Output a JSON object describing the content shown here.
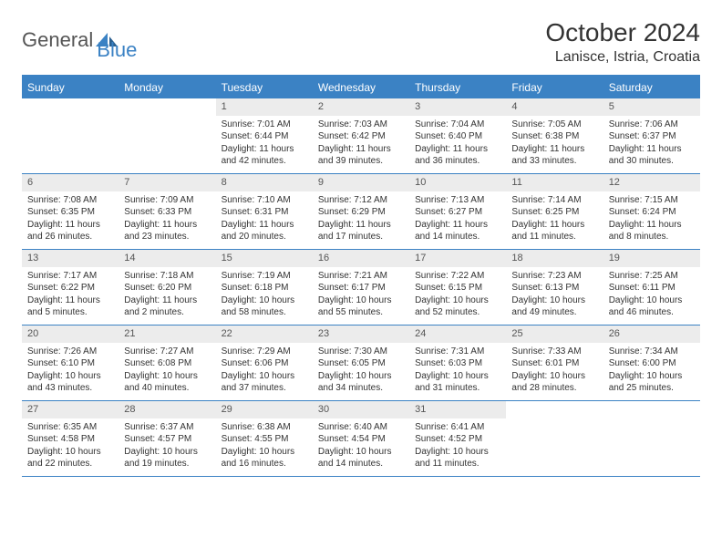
{
  "logo": {
    "text1": "General",
    "text2": "Blue"
  },
  "title": "October 2024",
  "location": "Lanisce, Istria, Croatia",
  "colors": {
    "accent": "#3b82c4",
    "header_bg": "#3b82c4",
    "header_text": "#ffffff",
    "daynum_bg": "#ececec",
    "border": "#3b82c4",
    "body_text": "#333333"
  },
  "weekdays": [
    "Sunday",
    "Monday",
    "Tuesday",
    "Wednesday",
    "Thursday",
    "Friday",
    "Saturday"
  ],
  "weeks": [
    [
      {
        "empty": true
      },
      {
        "empty": true
      },
      {
        "num": "1",
        "sunrise": "Sunrise: 7:01 AM",
        "sunset": "Sunset: 6:44 PM",
        "daylight": "Daylight: 11 hours and 42 minutes."
      },
      {
        "num": "2",
        "sunrise": "Sunrise: 7:03 AM",
        "sunset": "Sunset: 6:42 PM",
        "daylight": "Daylight: 11 hours and 39 minutes."
      },
      {
        "num": "3",
        "sunrise": "Sunrise: 7:04 AM",
        "sunset": "Sunset: 6:40 PM",
        "daylight": "Daylight: 11 hours and 36 minutes."
      },
      {
        "num": "4",
        "sunrise": "Sunrise: 7:05 AM",
        "sunset": "Sunset: 6:38 PM",
        "daylight": "Daylight: 11 hours and 33 minutes."
      },
      {
        "num": "5",
        "sunrise": "Sunrise: 7:06 AM",
        "sunset": "Sunset: 6:37 PM",
        "daylight": "Daylight: 11 hours and 30 minutes."
      }
    ],
    [
      {
        "num": "6",
        "sunrise": "Sunrise: 7:08 AM",
        "sunset": "Sunset: 6:35 PM",
        "daylight": "Daylight: 11 hours and 26 minutes."
      },
      {
        "num": "7",
        "sunrise": "Sunrise: 7:09 AM",
        "sunset": "Sunset: 6:33 PM",
        "daylight": "Daylight: 11 hours and 23 minutes."
      },
      {
        "num": "8",
        "sunrise": "Sunrise: 7:10 AM",
        "sunset": "Sunset: 6:31 PM",
        "daylight": "Daylight: 11 hours and 20 minutes."
      },
      {
        "num": "9",
        "sunrise": "Sunrise: 7:12 AM",
        "sunset": "Sunset: 6:29 PM",
        "daylight": "Daylight: 11 hours and 17 minutes."
      },
      {
        "num": "10",
        "sunrise": "Sunrise: 7:13 AM",
        "sunset": "Sunset: 6:27 PM",
        "daylight": "Daylight: 11 hours and 14 minutes."
      },
      {
        "num": "11",
        "sunrise": "Sunrise: 7:14 AM",
        "sunset": "Sunset: 6:25 PM",
        "daylight": "Daylight: 11 hours and 11 minutes."
      },
      {
        "num": "12",
        "sunrise": "Sunrise: 7:15 AM",
        "sunset": "Sunset: 6:24 PM",
        "daylight": "Daylight: 11 hours and 8 minutes."
      }
    ],
    [
      {
        "num": "13",
        "sunrise": "Sunrise: 7:17 AM",
        "sunset": "Sunset: 6:22 PM",
        "daylight": "Daylight: 11 hours and 5 minutes."
      },
      {
        "num": "14",
        "sunrise": "Sunrise: 7:18 AM",
        "sunset": "Sunset: 6:20 PM",
        "daylight": "Daylight: 11 hours and 2 minutes."
      },
      {
        "num": "15",
        "sunrise": "Sunrise: 7:19 AM",
        "sunset": "Sunset: 6:18 PM",
        "daylight": "Daylight: 10 hours and 58 minutes."
      },
      {
        "num": "16",
        "sunrise": "Sunrise: 7:21 AM",
        "sunset": "Sunset: 6:17 PM",
        "daylight": "Daylight: 10 hours and 55 minutes."
      },
      {
        "num": "17",
        "sunrise": "Sunrise: 7:22 AM",
        "sunset": "Sunset: 6:15 PM",
        "daylight": "Daylight: 10 hours and 52 minutes."
      },
      {
        "num": "18",
        "sunrise": "Sunrise: 7:23 AM",
        "sunset": "Sunset: 6:13 PM",
        "daylight": "Daylight: 10 hours and 49 minutes."
      },
      {
        "num": "19",
        "sunrise": "Sunrise: 7:25 AM",
        "sunset": "Sunset: 6:11 PM",
        "daylight": "Daylight: 10 hours and 46 minutes."
      }
    ],
    [
      {
        "num": "20",
        "sunrise": "Sunrise: 7:26 AM",
        "sunset": "Sunset: 6:10 PM",
        "daylight": "Daylight: 10 hours and 43 minutes."
      },
      {
        "num": "21",
        "sunrise": "Sunrise: 7:27 AM",
        "sunset": "Sunset: 6:08 PM",
        "daylight": "Daylight: 10 hours and 40 minutes."
      },
      {
        "num": "22",
        "sunrise": "Sunrise: 7:29 AM",
        "sunset": "Sunset: 6:06 PM",
        "daylight": "Daylight: 10 hours and 37 minutes."
      },
      {
        "num": "23",
        "sunrise": "Sunrise: 7:30 AM",
        "sunset": "Sunset: 6:05 PM",
        "daylight": "Daylight: 10 hours and 34 minutes."
      },
      {
        "num": "24",
        "sunrise": "Sunrise: 7:31 AM",
        "sunset": "Sunset: 6:03 PM",
        "daylight": "Daylight: 10 hours and 31 minutes."
      },
      {
        "num": "25",
        "sunrise": "Sunrise: 7:33 AM",
        "sunset": "Sunset: 6:01 PM",
        "daylight": "Daylight: 10 hours and 28 minutes."
      },
      {
        "num": "26",
        "sunrise": "Sunrise: 7:34 AM",
        "sunset": "Sunset: 6:00 PM",
        "daylight": "Daylight: 10 hours and 25 minutes."
      }
    ],
    [
      {
        "num": "27",
        "sunrise": "Sunrise: 6:35 AM",
        "sunset": "Sunset: 4:58 PM",
        "daylight": "Daylight: 10 hours and 22 minutes."
      },
      {
        "num": "28",
        "sunrise": "Sunrise: 6:37 AM",
        "sunset": "Sunset: 4:57 PM",
        "daylight": "Daylight: 10 hours and 19 minutes."
      },
      {
        "num": "29",
        "sunrise": "Sunrise: 6:38 AM",
        "sunset": "Sunset: 4:55 PM",
        "daylight": "Daylight: 10 hours and 16 minutes."
      },
      {
        "num": "30",
        "sunrise": "Sunrise: 6:40 AM",
        "sunset": "Sunset: 4:54 PM",
        "daylight": "Daylight: 10 hours and 14 minutes."
      },
      {
        "num": "31",
        "sunrise": "Sunrise: 6:41 AM",
        "sunset": "Sunset: 4:52 PM",
        "daylight": "Daylight: 10 hours and 11 minutes."
      },
      {
        "empty": true
      },
      {
        "empty": true
      }
    ]
  ]
}
